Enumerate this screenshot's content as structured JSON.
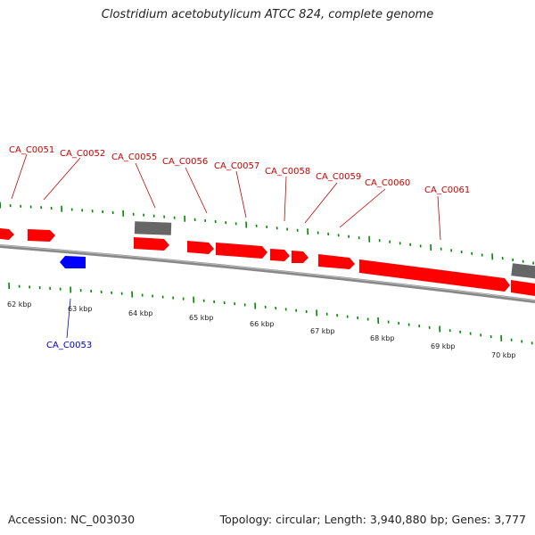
{
  "title": "Clostridium acetobutylicum ATCC 824, complete genome",
  "accession": "Accession: NC_003030",
  "topology": "Topology: circular; Length: 3,940,880 bp; Genes: 3,777",
  "colors": {
    "forward_gene": "#ff0000",
    "reverse_gene": "#0000ff",
    "other_feature": "#666666",
    "backbone": "#888888",
    "ticks": "#008800",
    "label_forward": "#cc0000",
    "label_reverse": "#0000cc"
  },
  "scale_labels": [
    "62 kbp",
    "63 kbp",
    "64 kbp",
    "65 kbp",
    "66 kbp",
    "67 kbp",
    "68 kbp",
    "69 kbp",
    "70 kbp"
  ],
  "gene_labels": [
    {
      "name": "CA_C0051",
      "strand": "forward"
    },
    {
      "name": "CA_C0052",
      "strand": "forward"
    },
    {
      "name": "CA_C0055",
      "strand": "forward"
    },
    {
      "name": "CA_C0056",
      "strand": "forward"
    },
    {
      "name": "CA_C0057",
      "strand": "forward"
    },
    {
      "name": "CA_C0058",
      "strand": "forward"
    },
    {
      "name": "CA_C0059",
      "strand": "forward"
    },
    {
      "name": "CA_C0060",
      "strand": "forward"
    },
    {
      "name": "CA_C0061",
      "strand": "forward"
    },
    {
      "name": "CA_C0053",
      "strand": "reverse"
    }
  ]
}
